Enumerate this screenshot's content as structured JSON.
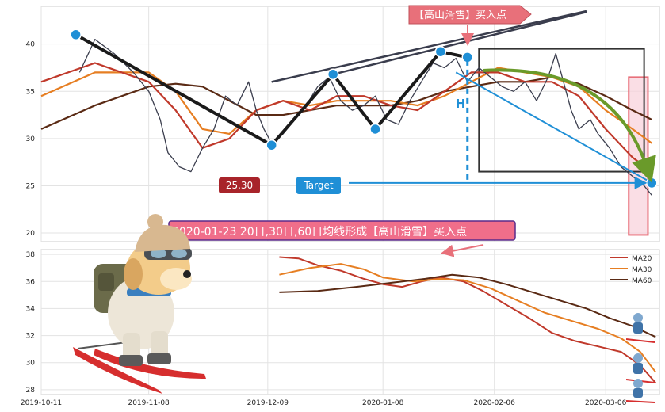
{
  "annotations": {
    "top_badge": "【高山滑雪】买入点",
    "mid_banner": "2020-01-23 20日,30日,60日均线形成【高山滑雪】买入点",
    "price_label": "25.30",
    "target_label": "Target",
    "h_label": "H"
  },
  "colors": {
    "ma20": "#c0392b",
    "ma30": "#e67e22",
    "ma60": "#5a2a14",
    "price": "#3a3d4d",
    "pattern": "#1a1a1a",
    "blue": "#1f8fd6",
    "badge_fill": "#e8707a",
    "zone_fill": "#f8d0da",
    "zone_stroke": "#e8707a",
    "arrow_green": "#6a9a2a",
    "label_dark_red": "#a8242a"
  },
  "icons": {
    "mascot": "skiing-dog-icon",
    "mini_skier": "mini-skier-icon"
  },
  "chart_data": [
    {
      "type": "line",
      "panel": "price",
      "ylim": [
        19.5,
        44
      ],
      "yticks": [
        20,
        25,
        30,
        35,
        40
      ],
      "xlim": [
        "2019-10-11",
        "2020-03-20"
      ],
      "grid": true,
      "series": [
        {
          "key": "price",
          "values": [
            {
              "x": "2019-10-21",
              "y": 37
            },
            {
              "x": "2019-10-25",
              "y": 40.5
            },
            {
              "x": "2019-10-30",
              "y": 39
            },
            {
              "x": "2019-11-04",
              "y": 37
            },
            {
              "x": "2019-11-08",
              "y": 35
            },
            {
              "x": "2019-11-11",
              "y": 32
            },
            {
              "x": "2019-11-13",
              "y": 28.5
            },
            {
              "x": "2019-11-16",
              "y": 27
            },
            {
              "x": "2019-11-19",
              "y": 26.5
            },
            {
              "x": "2019-11-22",
              "y": 29
            },
            {
              "x": "2019-11-25",
              "y": 31
            },
            {
              "x": "2019-11-28",
              "y": 34.5
            },
            {
              "x": "2019-12-01",
              "y": 33.5
            },
            {
              "x": "2019-12-04",
              "y": 36
            },
            {
              "x": "2019-12-06",
              "y": 33
            },
            {
              "x": "2019-12-08",
              "y": 31
            },
            {
              "x": "2019-12-10",
              "y": 29.5
            },
            {
              "x": "2019-12-13",
              "y": 30.5
            },
            {
              "x": "2019-12-16",
              "y": 32
            },
            {
              "x": "2019-12-19",
              "y": 33.5
            },
            {
              "x": "2019-12-22",
              "y": 35.5
            },
            {
              "x": "2019-12-25",
              "y": 36.5
            },
            {
              "x": "2019-12-28",
              "y": 34
            },
            {
              "x": "2019-12-31",
              "y": 33
            },
            {
              "x": "2020-01-03",
              "y": 33.5
            },
            {
              "x": "2020-01-06",
              "y": 34.5
            },
            {
              "x": "2020-01-09",
              "y": 32
            },
            {
              "x": "2020-01-12",
              "y": 31.5
            },
            {
              "x": "2020-01-15",
              "y": 34
            },
            {
              "x": "2020-01-18",
              "y": 36
            },
            {
              "x": "2020-01-21",
              "y": 38
            },
            {
              "x": "2020-01-24",
              "y": 37.5
            },
            {
              "x": "2020-01-27",
              "y": 38.5
            },
            {
              "x": "2020-01-30",
              "y": 36
            },
            {
              "x": "2020-02-02",
              "y": 37.5
            },
            {
              "x": "2020-02-05",
              "y": 36.5
            },
            {
              "x": "2020-02-08",
              "y": 35.5
            },
            {
              "x": "2020-02-11",
              "y": 35
            },
            {
              "x": "2020-02-14",
              "y": 36
            },
            {
              "x": "2020-02-17",
              "y": 34
            },
            {
              "x": "2020-02-20",
              "y": 36.5
            },
            {
              "x": "2020-02-22",
              "y": 39
            },
            {
              "x": "2020-02-24",
              "y": 36
            },
            {
              "x": "2020-02-26",
              "y": 33
            },
            {
              "x": "2020-02-28",
              "y": 31
            },
            {
              "x": "2020-03-02",
              "y": 32
            },
            {
              "x": "2020-03-04",
              "y": 30.5
            },
            {
              "x": "2020-03-07",
              "y": 29
            },
            {
              "x": "2020-03-10",
              "y": 27
            },
            {
              "x": "2020-03-13",
              "y": 26
            },
            {
              "x": "2020-03-16",
              "y": 25
            },
            {
              "x": "2020-03-18",
              "y": 24
            }
          ]
        },
        {
          "key": "ma20",
          "values": [
            {
              "x": "2019-10-11",
              "y": 36
            },
            {
              "x": "2019-10-25",
              "y": 38
            },
            {
              "x": "2019-11-08",
              "y": 36
            },
            {
              "x": "2019-11-15",
              "y": 33
            },
            {
              "x": "2019-11-22",
              "y": 29
            },
            {
              "x": "2019-11-29",
              "y": 30
            },
            {
              "x": "2019-12-06",
              "y": 33
            },
            {
              "x": "2019-12-13",
              "y": 34
            },
            {
              "x": "2019-12-20",
              "y": 33
            },
            {
              "x": "2019-12-27",
              "y": 34.5
            },
            {
              "x": "2020-01-03",
              "y": 34.5
            },
            {
              "x": "2020-01-10",
              "y": 33.5
            },
            {
              "x": "2020-01-17",
              "y": 33
            },
            {
              "x": "2020-01-24",
              "y": 35
            },
            {
              "x": "2020-01-31",
              "y": 37
            },
            {
              "x": "2020-02-07",
              "y": 37
            },
            {
              "x": "2020-02-14",
              "y": 36
            },
            {
              "x": "2020-02-21",
              "y": 36
            },
            {
              "x": "2020-02-28",
              "y": 34.5
            },
            {
              "x": "2020-03-06",
              "y": 31
            },
            {
              "x": "2020-03-13",
              "y": 28
            },
            {
              "x": "2020-03-18",
              "y": 26.5
            }
          ]
        },
        {
          "key": "ma30",
          "values": [
            {
              "x": "2019-10-11",
              "y": 34.5
            },
            {
              "x": "2019-10-25",
              "y": 37
            },
            {
              "x": "2019-11-08",
              "y": 37
            },
            {
              "x": "2019-11-15",
              "y": 35
            },
            {
              "x": "2019-11-22",
              "y": 31
            },
            {
              "x": "2019-11-29",
              "y": 30.5
            },
            {
              "x": "2019-12-06",
              "y": 33
            },
            {
              "x": "2019-12-13",
              "y": 34
            },
            {
              "x": "2019-12-20",
              "y": 33.5
            },
            {
              "x": "2019-12-27",
              "y": 34
            },
            {
              "x": "2020-01-03",
              "y": 34
            },
            {
              "x": "2020-01-10",
              "y": 34
            },
            {
              "x": "2020-01-17",
              "y": 33.5
            },
            {
              "x": "2020-01-24",
              "y": 34.5
            },
            {
              "x": "2020-01-31",
              "y": 36
            },
            {
              "x": "2020-02-07",
              "y": 37.5
            },
            {
              "x": "2020-02-14",
              "y": 37
            },
            {
              "x": "2020-02-21",
              "y": 36.5
            },
            {
              "x": "2020-02-28",
              "y": 35.5
            },
            {
              "x": "2020-03-06",
              "y": 33
            },
            {
              "x": "2020-03-13",
              "y": 31
            },
            {
              "x": "2020-03-18",
              "y": 29.5
            }
          ]
        },
        {
          "key": "ma60",
          "values": [
            {
              "x": "2019-10-11",
              "y": 31
            },
            {
              "x": "2019-10-25",
              "y": 33.5
            },
            {
              "x": "2019-11-08",
              "y": 35.5
            },
            {
              "x": "2019-11-15",
              "y": 35.8
            },
            {
              "x": "2019-11-22",
              "y": 35.5
            },
            {
              "x": "2019-11-29",
              "y": 34
            },
            {
              "x": "2019-12-06",
              "y": 32.5
            },
            {
              "x": "2019-12-13",
              "y": 32.5
            },
            {
              "x": "2019-12-20",
              "y": 33
            },
            {
              "x": "2019-12-27",
              "y": 33.5
            },
            {
              "x": "2020-01-03",
              "y": 33.5
            },
            {
              "x": "2020-01-10",
              "y": 33.5
            },
            {
              "x": "2020-01-17",
              "y": 34
            },
            {
              "x": "2020-01-24",
              "y": 35
            },
            {
              "x": "2020-01-31",
              "y": 35.5
            },
            {
              "x": "2020-02-07",
              "y": 36
            },
            {
              "x": "2020-02-14",
              "y": 36
            },
            {
              "x": "2020-02-21",
              "y": 36.5
            },
            {
              "x": "2020-02-28",
              "y": 35.8
            },
            {
              "x": "2020-03-06",
              "y": 34.5
            },
            {
              "x": "2020-03-13",
              "y": 33
            },
            {
              "x": "2020-03-18",
              "y": 32
            }
          ]
        }
      ],
      "pattern_points": [
        {
          "x": "2019-10-20",
          "y": 41
        },
        {
          "x": "2019-12-10",
          "y": 29.3
        },
        {
          "x": "2019-12-26",
          "y": 36.8
        },
        {
          "x": "2020-01-06",
          "y": 31
        },
        {
          "x": "2020-01-23",
          "y": 39.2
        },
        {
          "x": "2020-01-30",
          "y": 38.6
        },
        {
          "x": "2020-03-18",
          "y": 25.3
        }
      ],
      "trendlines": [
        {
          "from": {
            "x": "2019-12-10",
            "y": 36
          },
          "to": {
            "x": "2020-03-01",
            "y": 43.5
          }
        },
        {
          "from": {
            "x": "2019-12-26",
            "y": 36.8
          },
          "to": {
            "x": "2020-03-01",
            "y": 43.4
          }
        },
        {
          "from": {
            "x": "2020-01-27",
            "y": 37
          },
          "to": {
            "x": "2020-03-18",
            "y": 25.3
          }
        }
      ],
      "box": {
        "x0": "2020-02-02",
        "x1": "2020-03-16",
        "y0": 26.5,
        "y1": 39.5
      },
      "zone": {
        "x0": "2020-03-12",
        "x1": "2020-03-17",
        "y0": 19.8,
        "y1": 36.5
      },
      "target_level": 25.3,
      "h_date": "2020-01-30"
    },
    {
      "type": "line",
      "panel": "moving-averages",
      "ylim": [
        27.7,
        38.3
      ],
      "yticks": [
        28,
        30,
        32,
        34,
        36,
        38
      ],
      "xlim": [
        "2019-10-11",
        "2020-03-20"
      ],
      "xticks": [
        "2019-10-11",
        "2019-11-08",
        "2019-12-09",
        "2020-01-08",
        "2020-02-06",
        "2020-03-06"
      ],
      "legend": "top-right",
      "grid": true,
      "series": [
        {
          "key": "ma20",
          "name": "MA20",
          "values": [
            {
              "x": "2019-12-12",
              "y": 37.8
            },
            {
              "x": "2019-12-17",
              "y": 37.7
            },
            {
              "x": "2019-12-22",
              "y": 37.2
            },
            {
              "x": "2019-12-28",
              "y": 36.8
            },
            {
              "x": "2020-01-03",
              "y": 36.2
            },
            {
              "x": "2020-01-08",
              "y": 35.8
            },
            {
              "x": "2020-01-13",
              "y": 35.6
            },
            {
              "x": "2020-01-18",
              "y": 36
            },
            {
              "x": "2020-01-23",
              "y": 36.3
            },
            {
              "x": "2020-01-29",
              "y": 36
            },
            {
              "x": "2020-02-03",
              "y": 35.3
            },
            {
              "x": "2020-02-09",
              "y": 34.3
            },
            {
              "x": "2020-02-15",
              "y": 33.3
            },
            {
              "x": "2020-02-21",
              "y": 32.2
            },
            {
              "x": "2020-02-27",
              "y": 31.6
            },
            {
              "x": "2020-03-04",
              "y": 31.2
            },
            {
              "x": "2020-03-10",
              "y": 30.8
            },
            {
              "x": "2020-03-15",
              "y": 29.8
            },
            {
              "x": "2020-03-19",
              "y": 28.5
            }
          ]
        },
        {
          "key": "ma30",
          "name": "MA30",
          "values": [
            {
              "x": "2019-12-12",
              "y": 36.5
            },
            {
              "x": "2019-12-20",
              "y": 37
            },
            {
              "x": "2019-12-28",
              "y": 37.3
            },
            {
              "x": "2020-01-03",
              "y": 36.9
            },
            {
              "x": "2020-01-08",
              "y": 36.3
            },
            {
              "x": "2020-01-16",
              "y": 36
            },
            {
              "x": "2020-01-23",
              "y": 36.2
            },
            {
              "x": "2020-01-29",
              "y": 36.1
            },
            {
              "x": "2020-02-05",
              "y": 35.5
            },
            {
              "x": "2020-02-12",
              "y": 34.6
            },
            {
              "x": "2020-02-19",
              "y": 33.7
            },
            {
              "x": "2020-02-26",
              "y": 33.1
            },
            {
              "x": "2020-03-04",
              "y": 32.5
            },
            {
              "x": "2020-03-10",
              "y": 31.8
            },
            {
              "x": "2020-03-15",
              "y": 30.8
            },
            {
              "x": "2020-03-19",
              "y": 29.3
            }
          ]
        },
        {
          "key": "ma60",
          "name": "MA60",
          "values": [
            {
              "x": "2019-12-12",
              "y": 35.2
            },
            {
              "x": "2019-12-22",
              "y": 35.3
            },
            {
              "x": "2020-01-01",
              "y": 35.6
            },
            {
              "x": "2020-01-10",
              "y": 35.9
            },
            {
              "x": "2020-01-19",
              "y": 36.2
            },
            {
              "x": "2020-01-26",
              "y": 36.5
            },
            {
              "x": "2020-02-02",
              "y": 36.3
            },
            {
              "x": "2020-02-09",
              "y": 35.8
            },
            {
              "x": "2020-02-16",
              "y": 35.2
            },
            {
              "x": "2020-02-23",
              "y": 34.6
            },
            {
              "x": "2020-03-01",
              "y": 34
            },
            {
              "x": "2020-03-07",
              "y": 33.3
            },
            {
              "x": "2020-03-13",
              "y": 32.7
            },
            {
              "x": "2020-03-19",
              "y": 31.9
            }
          ]
        }
      ]
    }
  ]
}
